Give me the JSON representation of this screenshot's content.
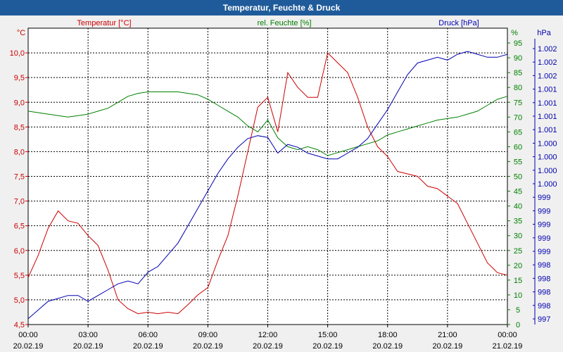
{
  "window": {
    "title": "Temperatur, Feuchte & Druck"
  },
  "colors": {
    "temperature": "#cc0000",
    "humidity": "#008000",
    "pressure": "#0000b0",
    "grid": "#000000",
    "background": "#ffffff"
  },
  "chart_data": {
    "type": "line",
    "title": "Temperatur, Feuchte & Druck",
    "x": [
      "00:00",
      "00:30",
      "01:00",
      "01:30",
      "02:00",
      "02:30",
      "03:00",
      "03:30",
      "04:00",
      "04:30",
      "05:00",
      "05:30",
      "06:00",
      "06:30",
      "07:00",
      "07:30",
      "08:00",
      "08:30",
      "09:00",
      "09:30",
      "10:00",
      "10:30",
      "11:00",
      "11:30",
      "12:00",
      "12:30",
      "13:00",
      "13:30",
      "14:00",
      "14:30",
      "15:00",
      "15:30",
      "16:00",
      "16:30",
      "17:00",
      "17:30",
      "18:00",
      "18:30",
      "19:00",
      "19:30",
      "20:00",
      "20:30",
      "21:00",
      "21:30",
      "22:00",
      "22:30",
      "23:00",
      "23:30",
      "00:00"
    ],
    "x_ticks": [
      {
        "time": "00:00",
        "date": "20.02.19"
      },
      {
        "time": "03:00",
        "date": "20.02.19"
      },
      {
        "time": "06:00",
        "date": "20.02.19"
      },
      {
        "time": "09:00",
        "date": "20.02.19"
      },
      {
        "time": "12:00",
        "date": "20.02.19"
      },
      {
        "time": "15:00",
        "date": "20.02.19"
      },
      {
        "time": "18:00",
        "date": "20.02.19"
      },
      {
        "time": "21:00",
        "date": "20.02.19"
      },
      {
        "time": "00:00",
        "date": "21.02.19"
      }
    ],
    "axes": {
      "left": {
        "unit": "°C",
        "label": "Temperatur [°C]",
        "ylim": [
          4.5,
          10.5
        ],
        "ticks": [
          "4,5",
          "5,0",
          "5,5",
          "6,0",
          "6,5",
          "7,0",
          "7,5",
          "8,0",
          "8,5",
          "9,0",
          "9,5",
          "10,0"
        ]
      },
      "right1": {
        "unit": "%",
        "label": "rel. Feuchte [%]",
        "ylim": [
          0,
          100
        ],
        "ticks": [
          "0",
          "5",
          "10",
          "15",
          "20",
          "25",
          "30",
          "35",
          "40",
          "45",
          "50",
          "55",
          "60",
          "65",
          "70",
          "75",
          "80",
          "85",
          "90",
          "95"
        ]
      },
      "right2": {
        "unit": "hPa",
        "label": "Druck [hPa]",
        "ylim": [
          997.5,
          1002.6
        ],
        "ticks": [
          "997",
          "998",
          "998",
          "998",
          "998",
          "999",
          "999",
          "999",
          "999",
          "999",
          "1.000",
          "1.000",
          "1.000",
          "1.000",
          "1.001",
          "1.001",
          "1.001",
          "1.001",
          "1.002",
          "1.002",
          "1.002"
        ]
      }
    },
    "series": [
      {
        "name": "Temperatur [°C]",
        "axis": "left",
        "values": [
          5.45,
          5.9,
          6.45,
          6.8,
          6.6,
          6.55,
          6.3,
          6.1,
          5.6,
          5.0,
          4.82,
          4.72,
          4.75,
          4.72,
          4.75,
          4.72,
          4.9,
          5.1,
          5.25,
          5.8,
          6.3,
          7.1,
          8.0,
          8.9,
          9.1,
          8.4,
          9.6,
          9.3,
          9.1,
          9.1,
          10.0,
          9.8,
          9.6,
          9.1,
          8.5,
          8.1,
          7.9,
          7.6,
          7.55,
          7.5,
          7.3,
          7.25,
          7.1,
          6.95,
          6.55,
          6.15,
          5.75,
          5.55,
          5.5
        ]
      },
      {
        "name": "rel. Feuchte [%]",
        "axis": "right1",
        "values": [
          72,
          71.5,
          71,
          70.5,
          70,
          70.5,
          71,
          72,
          73,
          75,
          77,
          78,
          78.5,
          78.5,
          78.5,
          78.5,
          78,
          77.5,
          76,
          74,
          72,
          70,
          67,
          65,
          69,
          63,
          60,
          59,
          60,
          59,
          57,
          58,
          59,
          60,
          61,
          62,
          64,
          65,
          66,
          67,
          68,
          69,
          69.5,
          70,
          71,
          72,
          74,
          76,
          77
        ]
      },
      {
        "name": "Druck [hPa]",
        "axis": "right2",
        "values": [
          997.6,
          997.75,
          997.9,
          997.95,
          998.0,
          998.0,
          997.9,
          998.0,
          998.1,
          998.2,
          998.25,
          998.2,
          998.4,
          998.5,
          998.7,
          998.9,
          999.2,
          999.5,
          999.8,
          1000.1,
          1000.35,
          1000.55,
          1000.7,
          1000.75,
          1000.72,
          1000.45,
          1000.6,
          1000.55,
          1000.45,
          1000.4,
          1000.35,
          1000.35,
          1000.45,
          1000.55,
          1000.7,
          1000.95,
          1001.2,
          1001.5,
          1001.8,
          1002.0,
          1002.05,
          1002.1,
          1002.05,
          1002.15,
          1002.2,
          1002.15,
          1002.1,
          1002.1,
          1002.15
        ]
      }
    ]
  }
}
